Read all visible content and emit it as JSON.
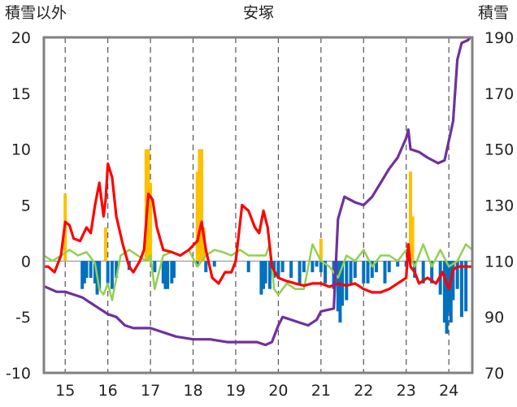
{
  "chart_data": {
    "type": "line",
    "title": "安塚",
    "left_axis_label": "積雪以外",
    "right_axis_label": "積雪",
    "left_ylim": [
      -10,
      20
    ],
    "left_yticks": [
      -10,
      -5,
      0,
      5,
      10,
      15,
      20
    ],
    "right_ylim": [
      70,
      190
    ],
    "right_yticks": [
      70,
      90,
      110,
      130,
      150,
      170,
      190
    ],
    "xlim": [
      14.5,
      24.55
    ],
    "xticks": [
      15,
      16,
      17,
      18,
      19,
      20,
      21,
      22,
      23,
      24
    ],
    "grid": "dashed-vertical",
    "series": [
      {
        "key": "snow_depth",
        "axis": "right",
        "style": "line",
        "color": "#7030a0",
        "x": [
          14.5,
          14.8,
          15.0,
          15.2,
          15.4,
          15.6,
          15.8,
          16.0,
          16.2,
          16.4,
          16.6,
          16.8,
          17.0,
          17.2,
          17.6,
          18.0,
          18.4,
          18.8,
          19.2,
          19.5,
          19.7,
          19.85,
          20.0,
          20.1,
          20.3,
          20.5,
          20.7,
          20.9,
          21.0,
          21.3,
          21.4,
          21.55,
          21.8,
          22.0,
          22.2,
          22.4,
          22.6,
          22.8,
          23.0,
          23.05,
          23.1,
          23.3,
          23.5,
          23.75,
          23.9,
          24.1,
          24.2,
          24.3,
          24.45,
          24.5
        ],
        "values": [
          101,
          99,
          99,
          98,
          97,
          95,
          93,
          91,
          90,
          87,
          86,
          86,
          86,
          85,
          83,
          82,
          82,
          81,
          81,
          81,
          80,
          81,
          87,
          90,
          89,
          88,
          87,
          89,
          92,
          93,
          125,
          133,
          131,
          130,
          133,
          138,
          143,
          147,
          154,
          157,
          150,
          149,
          147,
          145,
          146,
          160,
          182,
          188,
          189,
          190
        ]
      },
      {
        "key": "temp_red",
        "axis": "left",
        "style": "line",
        "color": "#ff0000",
        "x": [
          14.5,
          14.6,
          14.75,
          14.9,
          15.0,
          15.1,
          15.2,
          15.35,
          15.5,
          15.6,
          15.7,
          15.8,
          15.9,
          15.95,
          16.0,
          16.1,
          16.2,
          16.35,
          16.5,
          16.6,
          16.75,
          16.85,
          16.95,
          17.05,
          17.15,
          17.3,
          17.5,
          17.7,
          17.9,
          18.1,
          18.2,
          18.3,
          18.45,
          18.6,
          18.75,
          18.9,
          19.0,
          19.15,
          19.3,
          19.45,
          19.55,
          19.65,
          19.75,
          19.85,
          20.0,
          20.2,
          20.4,
          20.6,
          20.8,
          21.0,
          21.2,
          21.4,
          21.6,
          21.8,
          22.0,
          22.2,
          22.4,
          22.6,
          22.8,
          23.0,
          23.05,
          23.1,
          23.2,
          23.3,
          23.5,
          23.7,
          23.85,
          24.0,
          24.1,
          24.2,
          24.4,
          24.55
        ],
        "values": [
          -0.5,
          -0.5,
          -1.0,
          0.5,
          3.5,
          3.2,
          2.0,
          1.8,
          3.0,
          2.5,
          5.0,
          7.0,
          4.0,
          5.5,
          8.7,
          7.5,
          4.0,
          1.5,
          -0.5,
          -1.0,
          0.0,
          1.0,
          6.0,
          5.5,
          3.0,
          1.0,
          0.8,
          0.5,
          1.0,
          1.8,
          3.5,
          1.0,
          -1.5,
          -2.0,
          -1.0,
          -1.0,
          0.0,
          5.0,
          4.5,
          3.0,
          2.5,
          4.5,
          3.0,
          -0.5,
          -1.5,
          -1.8,
          -2.0,
          -2.2,
          -2.0,
          -2.0,
          -2.3,
          -2.0,
          -2.2,
          -2.0,
          -2.5,
          -2.8,
          -2.8,
          -2.5,
          -2.0,
          -1.5,
          1.5,
          -0.5,
          -1.0,
          -2.0,
          -1.5,
          -2.0,
          -1.0,
          -2.5,
          -0.8,
          -0.5,
          -0.5,
          -0.5
        ]
      },
      {
        "key": "temp_green",
        "axis": "left",
        "style": "line",
        "color": "#92d050",
        "x": [
          14.5,
          14.7,
          14.9,
          15.1,
          15.3,
          15.5,
          15.7,
          15.8,
          15.9,
          16.0,
          16.1,
          16.3,
          16.5,
          16.7,
          16.9,
          17.0,
          17.1,
          17.3,
          17.5,
          17.7,
          17.9,
          18.1,
          18.3,
          18.5,
          18.7,
          18.9,
          19.1,
          19.3,
          19.5,
          19.7,
          19.8,
          19.9,
          20.0,
          20.2,
          20.4,
          20.6,
          20.8,
          21.0,
          21.2,
          21.4,
          21.6,
          21.8,
          22.0,
          22.2,
          22.4,
          22.6,
          22.8,
          23.0,
          23.2,
          23.4,
          23.6,
          23.8,
          24.0,
          24.2,
          24.4,
          24.55
        ],
        "values": [
          0.5,
          0.0,
          0.5,
          1.0,
          0.5,
          0.8,
          -0.2,
          -2.5,
          -3.0,
          -2.0,
          -3.5,
          0.5,
          1.0,
          0.5,
          0.0,
          0.5,
          -2.5,
          0.5,
          0.8,
          0.5,
          1.0,
          -0.5,
          0.5,
          1.0,
          0.8,
          0.5,
          1.0,
          0.5,
          0.5,
          0.5,
          1.5,
          -2.5,
          -3.0,
          -2.0,
          -2.5,
          -2.5,
          1.5,
          0.0,
          -0.5,
          -1.5,
          0.5,
          0.0,
          1.0,
          -0.5,
          0.5,
          0.5,
          0.0,
          1.0,
          -0.5,
          1.5,
          -0.5,
          1.0,
          -0.5,
          0.0,
          1.5,
          1.0
        ]
      },
      {
        "key": "bars_blue",
        "axis": "left",
        "style": "bar",
        "color": "#0070c0",
        "x": [
          15.4,
          15.45,
          15.5,
          15.6,
          15.7,
          15.75,
          15.8,
          16.0,
          16.1,
          16.2,
          16.5,
          17.1,
          17.3,
          17.35,
          17.4,
          17.5,
          17.55,
          18.1,
          18.3,
          18.5,
          19.3,
          19.6,
          19.65,
          19.7,
          19.8,
          19.9,
          20.0,
          20.1,
          20.3,
          20.5,
          20.6,
          20.8,
          20.9,
          21.0,
          21.1,
          21.3,
          21.4,
          21.45,
          21.5,
          21.6,
          21.7,
          21.8,
          22.0,
          22.1,
          22.2,
          22.3,
          22.5,
          22.6,
          22.8,
          23.0,
          23.2,
          23.4,
          23.6,
          23.8,
          23.9,
          23.95,
          24.0,
          24.05,
          24.1,
          24.2,
          24.3,
          24.4
        ],
        "values": [
          -2.5,
          -2.0,
          -1.5,
          -1.5,
          -2.0,
          -3.0,
          -2.5,
          -2.0,
          -2.5,
          -1.5,
          -0.8,
          -1.0,
          -2.0,
          -2.5,
          -2.5,
          -2.0,
          -1.5,
          -0.5,
          -1.0,
          -0.5,
          -1.0,
          -3.0,
          -2.5,
          -2.0,
          -2.5,
          -1.5,
          -1.5,
          -1.0,
          -1.5,
          -2.0,
          -1.0,
          -1.0,
          -0.5,
          -1.0,
          -2.0,
          -2.5,
          -4.5,
          -5.5,
          -4.0,
          -3.5,
          -2.0,
          -1.5,
          -2.0,
          -2.0,
          -1.5,
          -1.0,
          -2.0,
          -1.0,
          -0.5,
          -0.5,
          -1.5,
          -2.0,
          -2.0,
          -3.0,
          -5.5,
          -6.5,
          -4.5,
          -5.5,
          -3.5,
          -2.5,
          -5.0,
          -4.5
        ]
      },
      {
        "key": "bars_orange",
        "axis": "left",
        "style": "bar",
        "color": "#ffc000",
        "x": [
          15.0,
          15.95,
          16.9,
          16.95,
          17.0,
          18.1,
          18.15,
          18.2,
          18.25,
          21.0,
          23.1,
          23.15
        ],
        "values": [
          6.0,
          3.0,
          10.0,
          10.0,
          7.0,
          8.0,
          10.0,
          10.0,
          3.0,
          2.0,
          8.0,
          4.0
        ]
      }
    ]
  }
}
